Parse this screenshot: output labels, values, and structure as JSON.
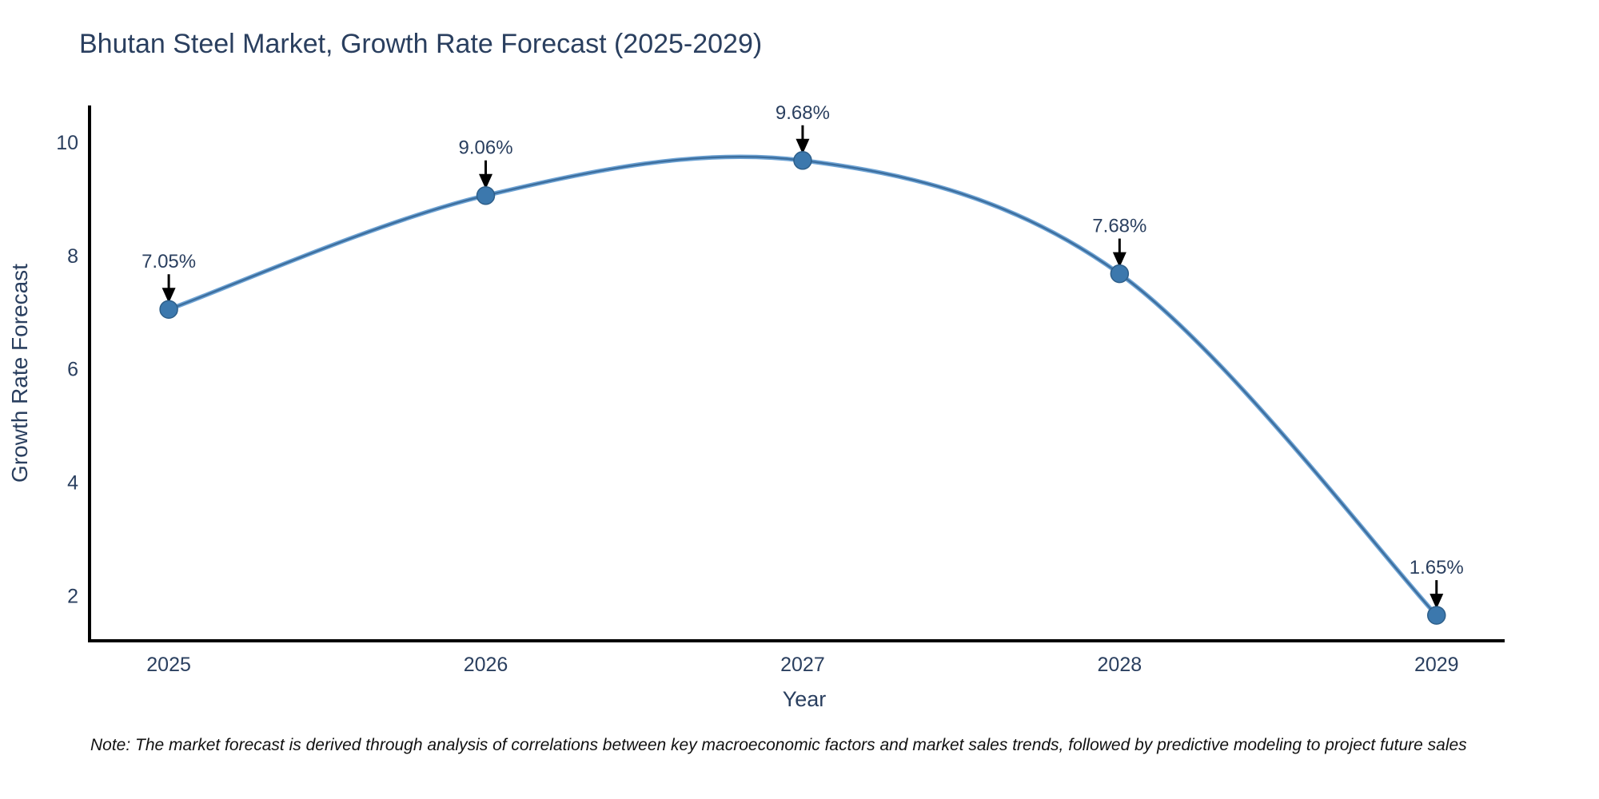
{
  "title": "Bhutan Steel Market, Growth Rate Forecast (2025-2029)",
  "note": "Note: The market forecast is derived through analysis of correlations between key macroeconomic factors and market sales trends, followed by predictive modeling to project future sales",
  "colors": {
    "title_text": "#2a3f5f",
    "axis_text": "#2a3f5f",
    "axis_line": "#000000",
    "line_outer": "#6ea3d4",
    "line_inner": "#3c6e9e",
    "marker_fill": "#3c78ad",
    "marker_edge": "#2e5f8a",
    "annotation_text": "#2a3f5f",
    "arrow": "#000000",
    "background": "#ffffff"
  },
  "chart_data": {
    "type": "line",
    "title": "Bhutan Steel Market, Growth Rate Forecast (2025-2029)",
    "xlabel": "Year",
    "ylabel": "Growth Rate Forecast",
    "x": [
      2025,
      2026,
      2027,
      2028,
      2029
    ],
    "values": [
      7.05,
      9.06,
      9.68,
      7.68,
      1.65
    ],
    "point_labels": [
      "7.05%",
      "9.06%",
      "9.68%",
      "7.68%",
      "1.65%"
    ],
    "xticks": [
      2025,
      2026,
      2027,
      2028,
      2029
    ],
    "xtick_labels": [
      "2025",
      "2026",
      "2027",
      "2028",
      "2029"
    ],
    "yticks": [
      2,
      4,
      6,
      8,
      10
    ],
    "ytick_labels": [
      "2",
      "4",
      "6",
      "8",
      "10"
    ],
    "xlim": [
      2024.75,
      2029.21
    ],
    "ylim": [
      1.2,
      10.65
    ],
    "grid": false,
    "legend": false,
    "smooth": true,
    "annotations_have_arrows": true
  }
}
